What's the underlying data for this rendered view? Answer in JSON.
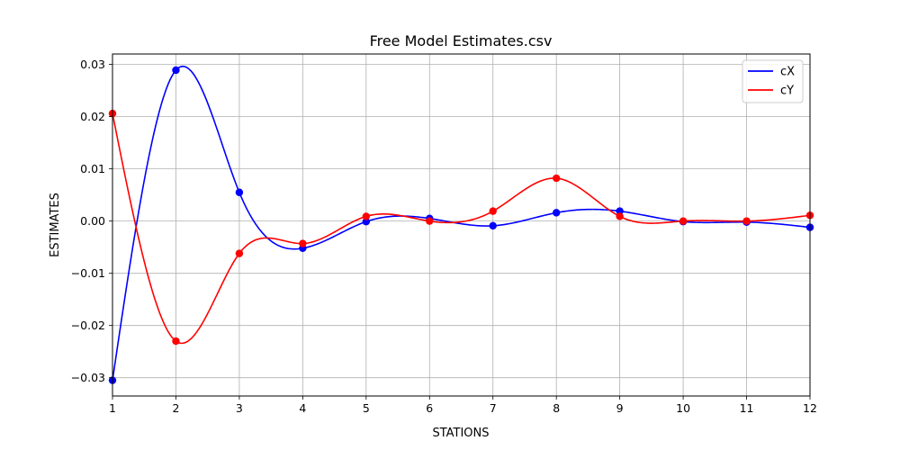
{
  "chart_data": {
    "type": "line",
    "title": "Free Model Estimates.csv",
    "xlabel": "STATIONS",
    "ylabel": "ESTIMATES",
    "xlim": [
      1,
      12
    ],
    "ylim": [
      -0.0335,
      0.032
    ],
    "xticks": [
      1,
      2,
      3,
      4,
      5,
      6,
      7,
      8,
      9,
      10,
      11,
      12
    ],
    "x_tick_labels": [
      "1",
      "2",
      "3",
      "4",
      "5",
      "6",
      "7",
      "8",
      "9",
      "10",
      "11",
      "12"
    ],
    "yticks": [
      -0.03,
      -0.02,
      -0.01,
      0.0,
      0.01,
      0.02,
      0.03
    ],
    "y_tick_labels": [
      "−0.03",
      "−0.02",
      "−0.01",
      "0.00",
      "0.01",
      "0.02",
      "0.03"
    ],
    "grid": true,
    "legend_position": "top-right",
    "x": [
      1,
      2,
      3,
      4,
      5,
      6,
      7,
      8,
      9,
      10,
      11,
      12
    ],
    "series": [
      {
        "name": "cX",
        "color": "#0000ff",
        "values": [
          -0.0305,
          0.0289,
          0.0055,
          -0.0052,
          -0.0001,
          0.0005,
          -0.0009,
          0.0016,
          0.0019,
          -0.0001,
          -0.0002,
          -0.0012
        ]
      },
      {
        "name": "cY",
        "color": "#ff0000",
        "values": [
          0.0206,
          -0.023,
          -0.0062,
          -0.0043,
          0.0009,
          0.0,
          0.0019,
          0.0082,
          0.0009,
          0.0,
          0.0,
          0.0011
        ]
      }
    ]
  }
}
